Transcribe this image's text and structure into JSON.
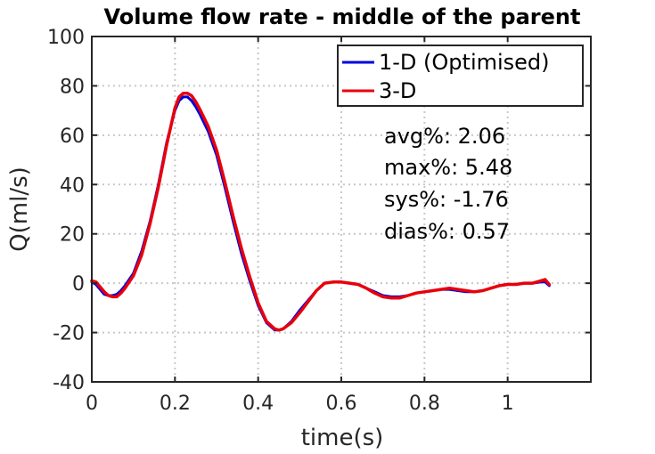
{
  "chart_data": {
    "type": "line",
    "title": "Volume flow rate - middle of the parent",
    "xlabel": "time(s)",
    "ylabel": "Q(ml/s)",
    "xlim": [
      0,
      1.2
    ],
    "ylim": [
      -40,
      100
    ],
    "x_ticks": [
      0,
      0.2,
      0.4,
      0.6,
      0.8,
      1
    ],
    "x_tick_labels": [
      "0",
      "0.2",
      "0.4",
      "0.6",
      "0.8",
      "1"
    ],
    "y_ticks": [
      -40,
      -20,
      0,
      20,
      40,
      60,
      80,
      100
    ],
    "y_tick_labels": [
      "-40",
      "-20",
      "0",
      "20",
      "40",
      "60",
      "80",
      "100"
    ],
    "grid": true,
    "legend_position": "top-right",
    "series": [
      {
        "name": "1-D (Optimised)",
        "color": "#0000dd",
        "x": [
          0,
          0.01,
          0.02,
          0.03,
          0.04,
          0.05,
          0.06,
          0.07,
          0.08,
          0.1,
          0.12,
          0.14,
          0.16,
          0.18,
          0.2,
          0.21,
          0.22,
          0.23,
          0.24,
          0.25,
          0.26,
          0.28,
          0.3,
          0.32,
          0.34,
          0.36,
          0.38,
          0.4,
          0.42,
          0.44,
          0.45,
          0.46,
          0.48,
          0.5,
          0.52,
          0.54,
          0.56,
          0.58,
          0.6,
          0.62,
          0.64,
          0.66,
          0.68,
          0.7,
          0.72,
          0.74,
          0.76,
          0.78,
          0.8,
          0.82,
          0.84,
          0.86,
          0.88,
          0.9,
          0.92,
          0.94,
          0.96,
          0.98,
          1.0,
          1.02,
          1.04,
          1.06,
          1.08,
          1.09,
          1.1
        ],
        "values": [
          0.5,
          -0.5,
          -2.5,
          -4.5,
          -5.0,
          -5.0,
          -4.5,
          -3.0,
          -1.0,
          4.0,
          13.0,
          25.0,
          40.0,
          57.0,
          70.0,
          74.0,
          75.5,
          75.5,
          74.0,
          71.5,
          68.5,
          61.5,
          52.0,
          39.0,
          25.0,
          12.0,
          1.0,
          -9.0,
          -16.0,
          -19.0,
          -19.0,
          -18.5,
          -15.5,
          -11.0,
          -7.0,
          -3.0,
          0.0,
          0.5,
          0.5,
          0.0,
          -0.5,
          -2.0,
          -3.5,
          -5.0,
          -5.5,
          -5.5,
          -5.0,
          -4.0,
          -3.5,
          -3.0,
          -2.5,
          -2.5,
          -3.0,
          -3.5,
          -3.5,
          -3.0,
          -2.0,
          -1.0,
          -0.5,
          -0.5,
          0.0,
          0.0,
          0.5,
          0.5,
          -1.0
        ]
      },
      {
        "name": "3-D",
        "color": "#e8000b",
        "x": [
          0,
          0.01,
          0.02,
          0.03,
          0.04,
          0.05,
          0.06,
          0.07,
          0.08,
          0.1,
          0.12,
          0.14,
          0.16,
          0.18,
          0.2,
          0.21,
          0.22,
          0.23,
          0.24,
          0.25,
          0.26,
          0.28,
          0.3,
          0.32,
          0.34,
          0.36,
          0.38,
          0.4,
          0.42,
          0.44,
          0.45,
          0.46,
          0.48,
          0.5,
          0.52,
          0.54,
          0.56,
          0.58,
          0.6,
          0.62,
          0.64,
          0.66,
          0.68,
          0.7,
          0.72,
          0.74,
          0.76,
          0.78,
          0.8,
          0.82,
          0.84,
          0.86,
          0.88,
          0.9,
          0.92,
          0.94,
          0.96,
          0.98,
          1.0,
          1.02,
          1.04,
          1.06,
          1.08,
          1.09,
          1.1
        ],
        "values": [
          1.0,
          0.5,
          -1.5,
          -3.5,
          -5.0,
          -5.5,
          -5.5,
          -4.0,
          -2.0,
          3.0,
          11.5,
          24.0,
          39.0,
          56.0,
          71.0,
          75.5,
          77.0,
          77.0,
          76.0,
          73.5,
          70.5,
          63.5,
          54.0,
          41.0,
          27.0,
          14.0,
          2.5,
          -8.0,
          -15.5,
          -18.5,
          -19.0,
          -18.5,
          -16.0,
          -12.0,
          -7.5,
          -3.0,
          0.0,
          0.5,
          0.5,
          0.0,
          -0.5,
          -2.0,
          -4.0,
          -5.5,
          -6.0,
          -6.0,
          -5.0,
          -4.0,
          -3.5,
          -3.0,
          -2.5,
          -2.0,
          -2.5,
          -3.0,
          -3.5,
          -3.0,
          -2.0,
          -1.0,
          -0.5,
          -0.5,
          0.0,
          0.0,
          1.0,
          1.5,
          -0.5
        ]
      }
    ],
    "annotations": [
      "avg%: 2.06",
      "max%: 5.48",
      "sys%: -1.76",
      "dias%: 0.57"
    ]
  }
}
